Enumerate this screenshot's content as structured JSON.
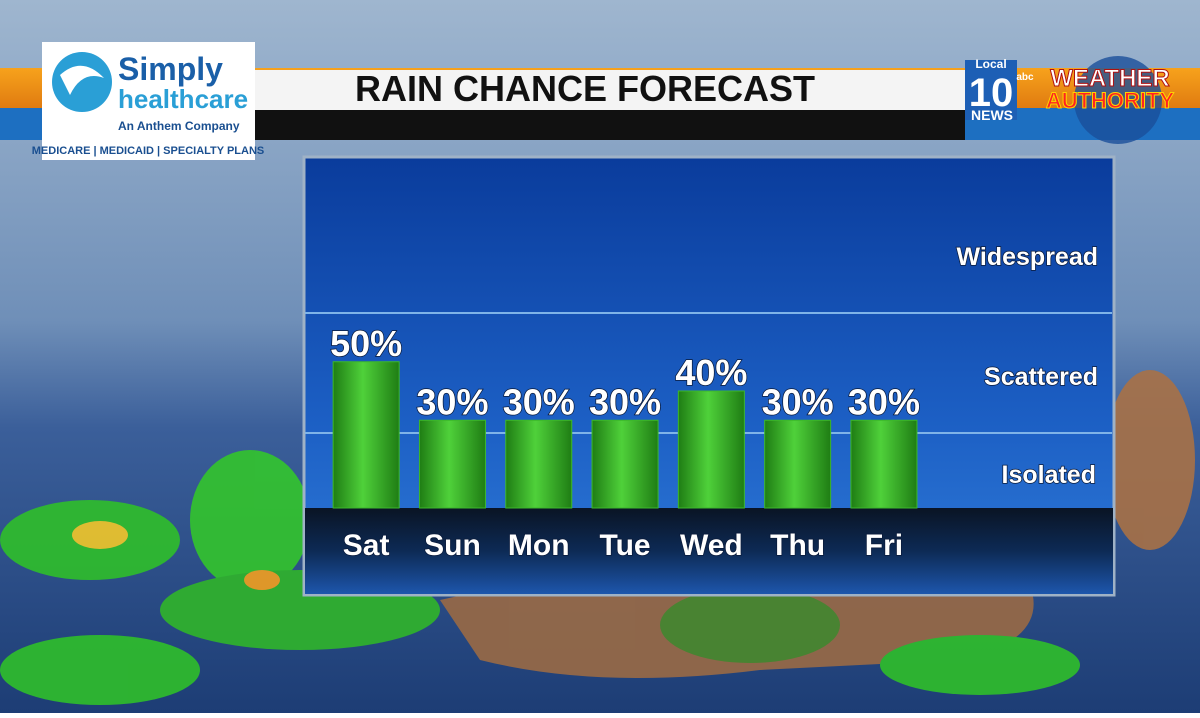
{
  "sponsor": {
    "name1": "Simply",
    "name2": "healthcare",
    "tagline": "An Anthem Company",
    "plans": "MEDICARE | MEDICAID | SPECIALTY PLANS"
  },
  "station": {
    "local": "Local",
    "number": "10",
    "network": "abc",
    "news": "NEWS",
    "brand1": "WEATHER",
    "brand2": "AUTHORITY"
  },
  "chart_data": {
    "type": "bar",
    "title": "RAIN CHANCE FORECAST",
    "categories": [
      "Sat",
      "Sun",
      "Mon",
      "Tue",
      "Wed",
      "Thu",
      "Fri"
    ],
    "values": [
      50,
      30,
      30,
      30,
      40,
      30,
      30
    ],
    "value_labels": [
      "50%",
      "30%",
      "30%",
      "30%",
      "40%",
      "30%",
      "30%"
    ],
    "color": "#3cb82a",
    "ylim": [
      0,
      120
    ],
    "annotations": [
      "Widespread",
      "Scattered",
      "Isolated"
    ]
  }
}
